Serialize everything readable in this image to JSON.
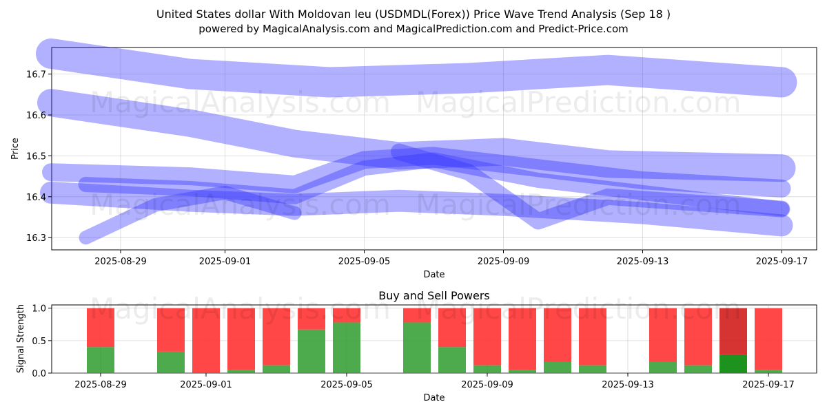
{
  "title_line1": "United States dollar With Moldovan leu (USDMDL(Forex)) Price Wave Trend Analysis (Sep 18 )",
  "title_line2": "powered by MagicalAnalysis.com and MagicalPrediction.com and Predict-Price.com",
  "watermarks": [
    "MagicalAnalysis.com",
    "MagicalPrediction.com"
  ],
  "colors": {
    "band": "#3333ff",
    "buy": "#2e9b2e",
    "sell": "#ff3333",
    "sell_dark": "#cc0000",
    "buy_dark": "#128c12"
  },
  "chart_data": [
    {
      "type": "line",
      "title": "",
      "xlabel": "Date",
      "ylabel": "Price",
      "x_tick_labels": [
        "2025-08-29",
        "2025-09-01",
        "2025-09-05",
        "2025-09-09",
        "2025-09-13",
        "2025-09-17"
      ],
      "y_tick_labels": [
        "16.3",
        "16.4",
        "16.5",
        "16.6",
        "16.7"
      ],
      "ylim": [
        16.27,
        16.765
      ],
      "grid": true,
      "series": [
        {
          "name": "wave-top",
          "x": [
            "2025-08-27",
            "2025-08-31",
            "2025-09-04",
            "2025-09-08",
            "2025-09-12",
            "2025-09-17"
          ],
          "values": [
            16.75,
            16.7,
            16.68,
            16.69,
            16.71,
            16.68
          ]
        },
        {
          "name": "wave-upper",
          "x": [
            "2025-08-27",
            "2025-08-31",
            "2025-09-03",
            "2025-09-06",
            "2025-09-09",
            "2025-09-12",
            "2025-09-17"
          ],
          "values": [
            16.63,
            16.58,
            16.53,
            16.5,
            16.51,
            16.48,
            16.47
          ]
        },
        {
          "name": "wave-mid-a",
          "x": [
            "2025-08-27",
            "2025-08-31",
            "2025-09-03",
            "2025-09-05",
            "2025-09-07",
            "2025-09-10",
            "2025-09-13",
            "2025-09-17"
          ],
          "values": [
            16.46,
            16.45,
            16.43,
            16.49,
            16.5,
            16.47,
            16.44,
            16.42
          ]
        },
        {
          "name": "wave-mid-b",
          "x": [
            "2025-08-28",
            "2025-08-31",
            "2025-09-03",
            "2025-09-05",
            "2025-09-07",
            "2025-09-10",
            "2025-09-13",
            "2025-09-17"
          ],
          "values": [
            16.43,
            16.42,
            16.4,
            16.47,
            16.49,
            16.44,
            16.41,
            16.37
          ]
        },
        {
          "name": "wave-low",
          "x": [
            "2025-08-27",
            "2025-08-31",
            "2025-09-03",
            "2025-09-06",
            "2025-09-09",
            "2025-09-13",
            "2025-09-17"
          ],
          "values": [
            16.41,
            16.39,
            16.38,
            16.39,
            16.38,
            16.36,
            16.33
          ]
        },
        {
          "name": "wave-rise",
          "x": [
            "2025-08-28",
            "2025-08-30",
            "2025-09-01",
            "2025-09-03"
          ],
          "values": [
            16.3,
            16.38,
            16.41,
            16.36
          ]
        },
        {
          "name": "wave-dip",
          "x": [
            "2025-09-06",
            "2025-09-08",
            "2025-09-10",
            "2025-09-12",
            "2025-09-17"
          ],
          "values": [
            16.51,
            16.46,
            16.34,
            16.4,
            16.37
          ]
        }
      ]
    },
    {
      "type": "bar",
      "title": "Buy and Sell Powers",
      "xlabel": "Date",
      "ylabel": "Signal Strength",
      "x_tick_labels": [
        "2025-08-29",
        "2025-09-01",
        "2025-09-05",
        "2025-09-09",
        "2025-09-13",
        "2025-09-17"
      ],
      "y_tick_labels": [
        "0.0",
        "0.5",
        "1.0"
      ],
      "ylim": [
        0,
        1.05
      ],
      "categories": [
        "2025-08-29",
        "2025-08-31",
        "2025-09-01",
        "2025-09-02",
        "2025-09-03",
        "2025-09-04",
        "2025-09-05",
        "2025-09-07",
        "2025-09-08",
        "2025-09-09",
        "2025-09-10",
        "2025-09-11",
        "2025-09-12",
        "2025-09-14",
        "2025-09-15",
        "2025-09-16",
        "2025-09-17"
      ],
      "series": [
        {
          "name": "Buy",
          "values": [
            0.4,
            0.33,
            0.0,
            0.05,
            0.12,
            0.67,
            0.78,
            0.78,
            0.4,
            0.12,
            0.05,
            0.17,
            0.12,
            0.17,
            0.12,
            0.28,
            0.05
          ]
        },
        {
          "name": "Sell",
          "values": [
            0.6,
            0.67,
            1.0,
            0.95,
            0.88,
            0.33,
            0.22,
            0.22,
            0.6,
            0.88,
            0.95,
            0.83,
            0.88,
            0.83,
            0.88,
            0.72,
            0.95
          ]
        }
      ]
    }
  ]
}
